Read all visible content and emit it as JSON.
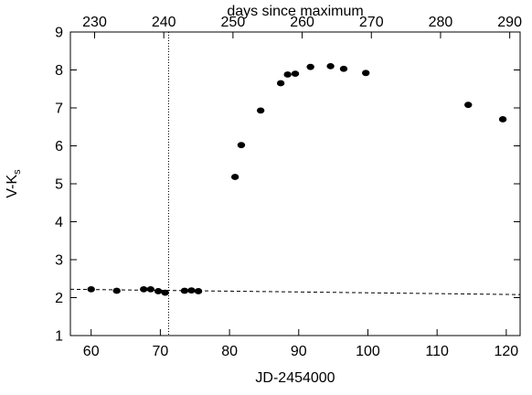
{
  "chart_data": {
    "type": "scatter",
    "xlabel": "JD-2454000",
    "top_xlabel": "days since maximum",
    "ylabel_main": "V-K",
    "ylabel_sub": "s",
    "xlim": [
      57,
      122
    ],
    "ylim": [
      1,
      9
    ],
    "top_xlim": [
      226.5,
      291.5
    ],
    "x_ticks": [
      60,
      70,
      80,
      90,
      100,
      110,
      120
    ],
    "x_tick_labels": [
      "60",
      "70",
      "80",
      "90",
      "100",
      "110",
      "120"
    ],
    "y_ticks": [
      1,
      2,
      3,
      4,
      5,
      6,
      7,
      8,
      9
    ],
    "y_tick_labels": [
      "1",
      "2",
      "3",
      "4",
      "5",
      "6",
      "7",
      "8",
      "9"
    ],
    "top_ticks": [
      230,
      240,
      250,
      260,
      270,
      280,
      290
    ],
    "top_tick_labels": [
      "230",
      "240",
      "250",
      "260",
      "270",
      "280",
      "290"
    ],
    "grid": false,
    "series": [
      {
        "points": [
          {
            "x": 60.0,
            "y": 2.22
          },
          {
            "x": 63.7,
            "y": 2.18
          },
          {
            "x": 67.6,
            "y": 2.22
          },
          {
            "x": 68.6,
            "y": 2.22
          },
          {
            "x": 69.7,
            "y": 2.17
          },
          {
            "x": 70.7,
            "y": 2.13
          },
          {
            "x": 73.5,
            "y": 2.18
          },
          {
            "x": 74.5,
            "y": 2.19
          },
          {
            "x": 75.5,
            "y": 2.17
          },
          {
            "x": 80.8,
            "y": 5.18
          },
          {
            "x": 81.7,
            "y": 6.02
          },
          {
            "x": 84.5,
            "y": 6.93
          },
          {
            "x": 87.4,
            "y": 7.65
          },
          {
            "x": 88.4,
            "y": 7.88
          },
          {
            "x": 89.5,
            "y": 7.9
          },
          {
            "x": 91.7,
            "y": 8.08
          },
          {
            "x": 94.6,
            "y": 8.1
          },
          {
            "x": 96.5,
            "y": 8.03
          },
          {
            "x": 99.7,
            "y": 7.92
          },
          {
            "x": 114.5,
            "y": 7.08
          },
          {
            "x": 119.5,
            "y": 6.7
          }
        ]
      }
    ],
    "trend_line": {
      "x": [
        57,
        122
      ],
      "y": [
        2.22,
        2.08
      ],
      "style": "dashed"
    },
    "vertical_line": {
      "x": 71.2,
      "style": "dotted"
    },
    "colors": {
      "marker": "#000000",
      "axes": "#000000",
      "background": "#ffffff"
    }
  }
}
